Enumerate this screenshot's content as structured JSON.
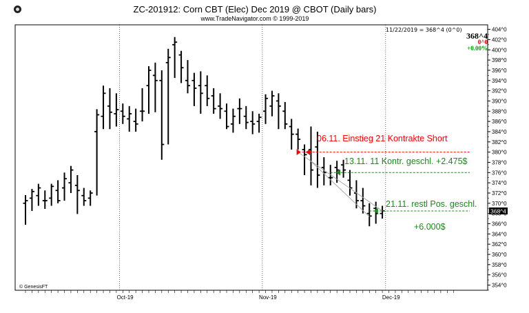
{
  "header": {
    "title": "ZC-201912:  Corn CBT (Elec) Dec 2019 @ CBOT  (Daily bars)",
    "subtitle": "www.TradeNavigator.com © 1999-2019",
    "readout": "11/22/2019 = 368^4 (0^0)",
    "quote": {
      "last": "368^4",
      "change": "0^0",
      "pct": "+0.00%"
    },
    "last_marker": "368^4",
    "copyright": "© GenesisFT"
  },
  "colors": {
    "background": "#ffffff",
    "bars": "#000000",
    "grid": "#000000",
    "entry": "#ff0000",
    "exit": "#1a8a1a",
    "channel": "#a8a8a8",
    "marker_bg": "#000000",
    "marker_fg": "#ffffff"
  },
  "chart_data": {
    "type": "ohlc",
    "y_axis": {
      "min": 353,
      "max": 404.5,
      "tick_values": [
        354,
        356,
        358,
        360,
        362,
        364,
        366,
        368,
        370,
        372,
        374,
        376,
        378,
        380,
        382,
        384,
        386,
        388,
        390,
        392,
        394,
        396,
        398,
        400,
        402,
        404
      ],
      "tick_labels": [
        "354^0",
        "356^0",
        "358^0",
        "360^0",
        "362^0",
        "364^0",
        "366^0",
        "368^0",
        "370^0",
        "372^0",
        "374^0",
        "376^0",
        "378^0",
        "380^0",
        "382^0",
        "384^0",
        "386^0",
        "388^0",
        "390^0",
        "392^0",
        "394^0",
        "396^0",
        "398^0",
        "400^0",
        "402^0",
        "404^0"
      ]
    },
    "x_axis": {
      "trading_days": 67,
      "month_labels": [
        {
          "label": "Oct-19",
          "day_index": 15
        },
        {
          "label": "Nov-19",
          "day_index": 37
        },
        {
          "label": "Dec-19",
          "day_index": 56
        }
      ]
    },
    "bars": [
      {
        "i": 0,
        "o": 370,
        "h": 371.6,
        "l": 365.8,
        "c": 370.5
      },
      {
        "i": 1,
        "o": 371,
        "h": 372.8,
        "l": 368.5,
        "c": 372.3
      },
      {
        "i": 2,
        "o": 371.5,
        "h": 373.8,
        "l": 369.5,
        "c": 373
      },
      {
        "i": 3,
        "o": 370.5,
        "h": 372.5,
        "l": 368.9,
        "c": 370.5
      },
      {
        "i": 4,
        "o": 371,
        "h": 373.8,
        "l": 369.5,
        "c": 373.3
      },
      {
        "i": 5,
        "o": 372.5,
        "h": 374.5,
        "l": 370,
        "c": 370.5
      },
      {
        "i": 6,
        "o": 373,
        "h": 376,
        "l": 370.5,
        "c": 374.8
      },
      {
        "i": 7,
        "o": 374,
        "h": 377.3,
        "l": 372,
        "c": 376.5
      },
      {
        "i": 8,
        "o": 373.5,
        "h": 375.5,
        "l": 367.9,
        "c": 372.5
      },
      {
        "i": 9,
        "o": 371.5,
        "h": 373,
        "l": 369.5,
        "c": 370.5
      },
      {
        "i": 10,
        "o": 371,
        "h": 372.5,
        "l": 369.5,
        "c": 372
      },
      {
        "i": 11,
        "o": 384,
        "h": 388.4,
        "l": 371.5,
        "c": 387.3
      },
      {
        "i": 12,
        "o": 387,
        "h": 393,
        "l": 384.5,
        "c": 391.5
      },
      {
        "i": 13,
        "o": 389,
        "h": 392.5,
        "l": 384.5,
        "c": 387.8
      },
      {
        "i": 14,
        "o": 387.5,
        "h": 391.5,
        "l": 385,
        "c": 388.3
      },
      {
        "i": 15,
        "o": 388,
        "h": 389.5,
        "l": 385.5,
        "c": 387
      },
      {
        "i": 16,
        "o": 386.5,
        "h": 389,
        "l": 384,
        "c": 387.5
      },
      {
        "i": 17,
        "o": 386,
        "h": 388.5,
        "l": 384,
        "c": 385.5
      },
      {
        "i": 18,
        "o": 388,
        "h": 392.5,
        "l": 386,
        "c": 388
      },
      {
        "i": 19,
        "o": 393,
        "h": 396.8,
        "l": 387.5,
        "c": 396
      },
      {
        "i": 20,
        "o": 395,
        "h": 397.5,
        "l": 387.8,
        "c": 394
      },
      {
        "i": 21,
        "o": 394,
        "h": 396,
        "l": 378.5,
        "c": 381.5
      },
      {
        "i": 22,
        "o": 397.5,
        "h": 400.2,
        "l": 381.5,
        "c": 398.5
      },
      {
        "i": 23,
        "o": 401,
        "h": 402.5,
        "l": 394.5,
        "c": 401.5
      },
      {
        "i": 24,
        "o": 399,
        "h": 399.8,
        "l": 393.5,
        "c": 396.5
      },
      {
        "i": 25,
        "o": 394,
        "h": 398,
        "l": 391.5,
        "c": 393
      },
      {
        "i": 26,
        "o": 394,
        "h": 395.5,
        "l": 389,
        "c": 392.5
      },
      {
        "i": 27,
        "o": 393,
        "h": 395.8,
        "l": 387.5,
        "c": 391.5
      },
      {
        "i": 28,
        "o": 393,
        "h": 395,
        "l": 389,
        "c": 390.5
      },
      {
        "i": 29,
        "o": 391,
        "h": 392.5,
        "l": 387.5,
        "c": 388.5
      },
      {
        "i": 30,
        "o": 389,
        "h": 391.5,
        "l": 386.5,
        "c": 388.5
      },
      {
        "i": 31,
        "o": 388,
        "h": 389.5,
        "l": 384.5,
        "c": 385
      },
      {
        "i": 32,
        "o": 385.5,
        "h": 388.5,
        "l": 383.8,
        "c": 387
      },
      {
        "i": 33,
        "o": 388.5,
        "h": 390.5,
        "l": 385.5,
        "c": 388.5
      },
      {
        "i": 34,
        "o": 387,
        "h": 389,
        "l": 384.5,
        "c": 385.8
      },
      {
        "i": 35,
        "o": 386,
        "h": 388,
        "l": 383.5,
        "c": 385.5
      },
      {
        "i": 36,
        "o": 386,
        "h": 387.5,
        "l": 383.8,
        "c": 386.8
      },
      {
        "i": 37,
        "o": 388,
        "h": 391.3,
        "l": 385.5,
        "c": 390.5
      },
      {
        "i": 38,
        "o": 389,
        "h": 392,
        "l": 387,
        "c": 391
      },
      {
        "i": 39,
        "o": 390,
        "h": 391.5,
        "l": 384.5,
        "c": 389
      },
      {
        "i": 40,
        "o": 388,
        "h": 389.8,
        "l": 384.5,
        "c": 385.5
      },
      {
        "i": 41,
        "o": 385,
        "h": 386.5,
        "l": 380.5,
        "c": 383.5
      },
      {
        "i": 42,
        "o": 383.5,
        "h": 384.6,
        "l": 380.5,
        "c": 382.5
      },
      {
        "i": 43,
        "o": 380.5,
        "h": 381.5,
        "l": 375.5,
        "c": 379.5
      },
      {
        "i": 44,
        "o": 380.5,
        "h": 385,
        "l": 373.5,
        "c": 376.5
      },
      {
        "i": 45,
        "o": 381,
        "h": 384,
        "l": 373,
        "c": 375.5
      },
      {
        "i": 46,
        "o": 377,
        "h": 379,
        "l": 373.5,
        "c": 376
      },
      {
        "i": 47,
        "o": 375,
        "h": 377.5,
        "l": 373.5,
        "c": 375
      },
      {
        "i": 48,
        "o": 377,
        "h": 378.3,
        "l": 374,
        "c": 376.5
      },
      {
        "i": 49,
        "o": 377.5,
        "h": 378.5,
        "l": 375,
        "c": 376.5
      },
      {
        "i": 50,
        "o": 374.5,
        "h": 376.5,
        "l": 371.5,
        "c": 373
      },
      {
        "i": 51,
        "o": 372,
        "h": 374.5,
        "l": 369,
        "c": 370.5
      },
      {
        "i": 52,
        "o": 370.5,
        "h": 373,
        "l": 368,
        "c": 369.5
      },
      {
        "i": 53,
        "o": 368,
        "h": 370,
        "l": 365.5,
        "c": 367.5
      },
      {
        "i": 54,
        "o": 369,
        "h": 370.3,
        "l": 366,
        "c": 368
      },
      {
        "i": 55,
        "o": 368,
        "h": 369.5,
        "l": 367,
        "c": 368.5
      }
    ],
    "annotations": [
      {
        "kind": "entry",
        "text": "06.11.  Einstieg  21 Kontrakte Short",
        "price": 380,
        "from_day": 42,
        "to_day": 66
      },
      {
        "kind": "partial-exit",
        "text": "13.11. 11 Kontr. geschl.  +2.475$",
        "price": 376,
        "from_day": 47,
        "to_day": 66
      },
      {
        "kind": "final-exit",
        "text": "21.11. restl Pos. geschl.",
        "price": 368.5,
        "from_day": 53,
        "to_day": 66
      },
      {
        "kind": "total",
        "text": "+6.000$"
      }
    ]
  }
}
